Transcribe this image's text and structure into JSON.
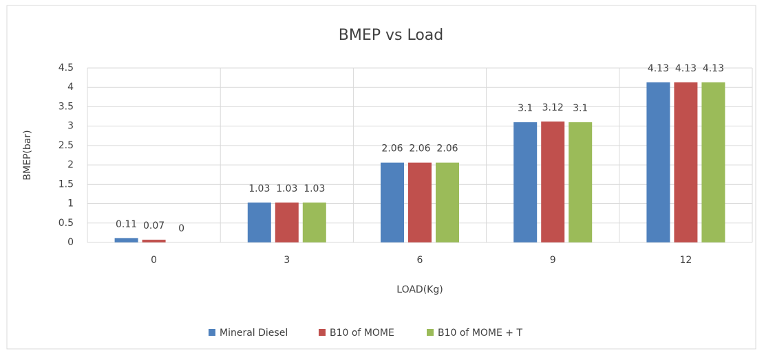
{
  "chart_data": {
    "type": "bar",
    "title": "BMEP vs Load",
    "x_label": "LOAD(Kg)",
    "y_label": "BMEP(bar)",
    "categories": [
      "0",
      "3",
      "6",
      "9",
      "12"
    ],
    "series": [
      {
        "name": "Mineral Diesel",
        "color": "#4f81bd",
        "values": [
          0.11,
          1.03,
          2.06,
          3.1,
          4.13
        ]
      },
      {
        "name": "B10 of MOME",
        "color": "#c0504d",
        "values": [
          0.07,
          1.03,
          2.06,
          3.12,
          4.13
        ]
      },
      {
        "name": "B10 of MOME + T",
        "color": "#9bbb59",
        "values": [
          0,
          1.03,
          2.06,
          3.1,
          4.13
        ]
      }
    ],
    "ylim": [
      0,
      4.5
    ],
    "yticks": [
      0,
      0.5,
      1,
      1.5,
      2,
      2.5,
      3,
      3.5,
      4,
      4.5
    ],
    "grid": true,
    "legend": "bottom"
  }
}
